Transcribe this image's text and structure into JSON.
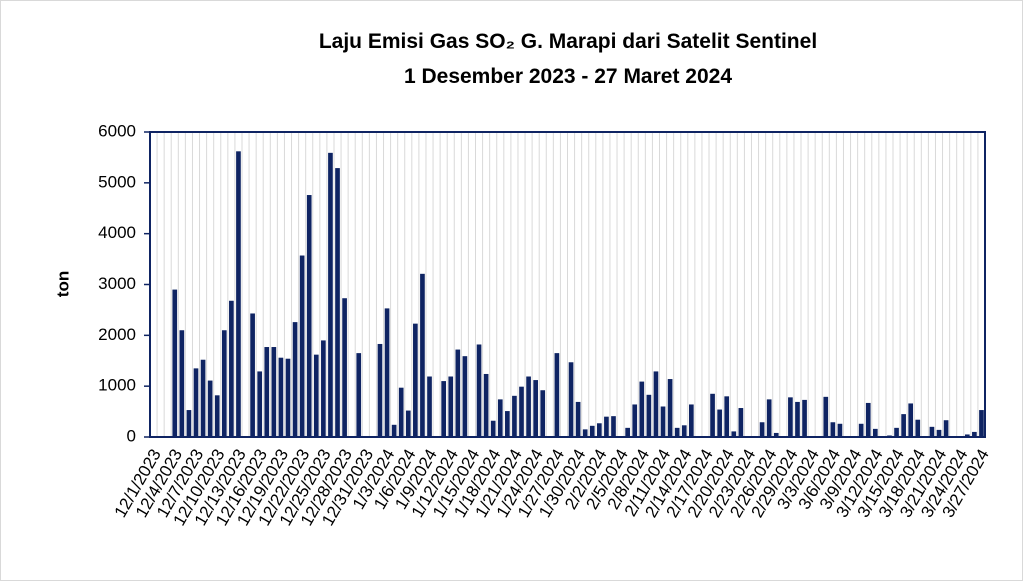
{
  "chart_data": {
    "type": "bar",
    "title": "Laju Emisi Gas SO₂ G. Marapi dari Satelit Sentinel",
    "subtitle": "1 Desember 2023 - 27 Maret 2024",
    "y_label": "ton",
    "color": "#0f2463",
    "ylim": [
      0,
      6000
    ],
    "yticks": [
      0,
      1000,
      2000,
      3000,
      4000,
      5000,
      6000
    ],
    "grid": true,
    "categories": [
      "12/1/2023",
      null,
      null,
      "12/4/2023",
      null,
      null,
      "12/7/2023",
      null,
      null,
      "12/10/2023",
      null,
      null,
      "12/13/2023",
      null,
      null,
      "12/16/2023",
      null,
      null,
      "12/19/2023",
      null,
      null,
      "12/22/2023",
      null,
      null,
      "12/25/2023",
      null,
      null,
      "12/28/2023",
      null,
      null,
      "12/31/2023",
      null,
      null,
      "1/3/2024",
      null,
      null,
      "1/6/2024",
      null,
      null,
      "1/9/2024",
      null,
      null,
      "1/12/2024",
      null,
      null,
      "1/15/2024",
      null,
      null,
      "1/18/2024",
      null,
      null,
      "1/21/2024",
      null,
      null,
      "1/24/2024",
      null,
      null,
      "1/27/2024",
      null,
      null,
      "1/30/2024",
      null,
      null,
      "2/2/2024",
      null,
      null,
      "2/5/2024",
      null,
      null,
      "2/8/2024",
      null,
      null,
      "2/11/2024",
      null,
      null,
      "2/14/2024",
      null,
      null,
      "2/17/2024",
      null,
      null,
      "2/20/2024",
      null,
      null,
      "2/23/2024",
      null,
      null,
      "2/26/2024",
      null,
      null,
      "2/29/2024",
      null,
      null,
      "3/3/2024",
      null,
      null,
      "3/6/2024",
      null,
      null,
      "3/9/2024",
      null,
      null,
      "3/12/2024",
      null,
      null,
      "3/15/2024",
      null,
      null,
      "3/18/2024",
      null,
      null,
      "3/21/2024",
      null,
      null,
      "3/24/2024",
      null,
      null,
      "3/27/2024"
    ],
    "values": [
      null,
      null,
      null,
      2900,
      2100,
      530,
      1350,
      1520,
      1110,
      820,
      2100,
      2680,
      5620,
      null,
      2430,
      1290,
      1770,
      1770,
      1560,
      1540,
      2260,
      3570,
      4760,
      1620,
      1900,
      5590,
      5290,
      2730,
      null,
      1650,
      null,
      null,
      1830,
      2530,
      240,
      970,
      520,
      2230,
      3210,
      1190,
      null,
      1100,
      1190,
      1720,
      1590,
      null,
      1820,
      1240,
      320,
      740,
      510,
      810,
      990,
      1190,
      1120,
      920,
      null,
      1650,
      null,
      1470,
      690,
      150,
      220,
      270,
      400,
      410,
      null,
      180,
      640,
      1090,
      830,
      1290,
      600,
      1140,
      180,
      230,
      640,
      null,
      null,
      850,
      540,
      800,
      110,
      570,
      null,
      null,
      290,
      740,
      80,
      null,
      780,
      690,
      730,
      null,
      null,
      790,
      290,
      260,
      null,
      null,
      260,
      670,
      160,
      null,
      30,
      180,
      450,
      660,
      340,
      null,
      200,
      140,
      330,
      null,
      null,
      50,
      100,
      530
    ]
  }
}
